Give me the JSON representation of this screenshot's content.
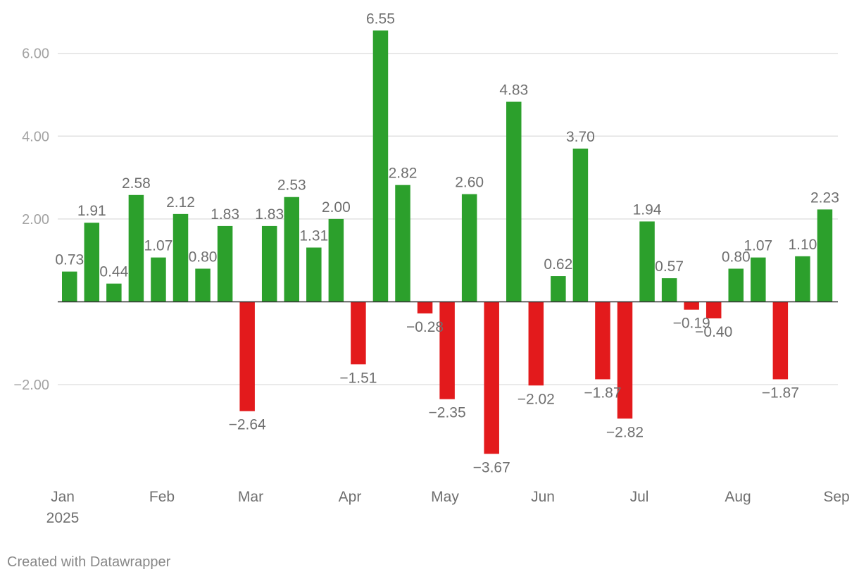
{
  "chart_data": {
    "type": "bar",
    "title": "",
    "xlabel": "",
    "ylabel": "",
    "ylim": [
      -4.2,
      6.9
    ],
    "yticks": [
      -2,
      2,
      4,
      6
    ],
    "ytick_labels": [
      "−2.00",
      "2.00",
      "4.00",
      "6.00"
    ],
    "x_axis_labels": [
      "Jan",
      "Feb",
      "Mar",
      "Apr",
      "May",
      "Jun",
      "Jul",
      "Aug",
      "Sep"
    ],
    "x_axis_sublabel": "2025",
    "bar_count": 35,
    "values": [
      0.73,
      1.91,
      0.44,
      2.58,
      1.07,
      2.12,
      0.8,
      1.83,
      -2.64,
      1.83,
      2.53,
      1.31,
      2.0,
      -1.51,
      6.55,
      2.82,
      -0.28,
      -2.35,
      2.6,
      -3.67,
      4.83,
      -2.02,
      0.62,
      3.7,
      -1.87,
      -2.82,
      1.94,
      0.57,
      -0.19,
      -0.4,
      0.8,
      1.07,
      -1.87,
      1.1,
      2.23
    ],
    "value_labels": [
      "0.73",
      "1.91",
      "0.44",
      "2.58",
      "1.07",
      "2.12",
      "0.80",
      "1.83",
      "−2.64",
      "1.83",
      "2.53",
      "1.31",
      "2.00",
      "−1.51",
      "6.55",
      "2.82",
      "−0.28",
      "−2.35",
      "2.60",
      "−3.67",
      "4.83",
      "−2.02",
      "0.62",
      "3.70",
      "−1.87",
      "−2.82",
      "1.94",
      "0.57",
      "−0.19",
      "−0.40",
      "0.80",
      "1.07",
      "−1.87",
      "1.10",
      "2.23"
    ],
    "positive_color": "#2ca02c",
    "negative_color": "#e31a1c"
  },
  "footer": {
    "credit": "Created with Datawrapper"
  }
}
